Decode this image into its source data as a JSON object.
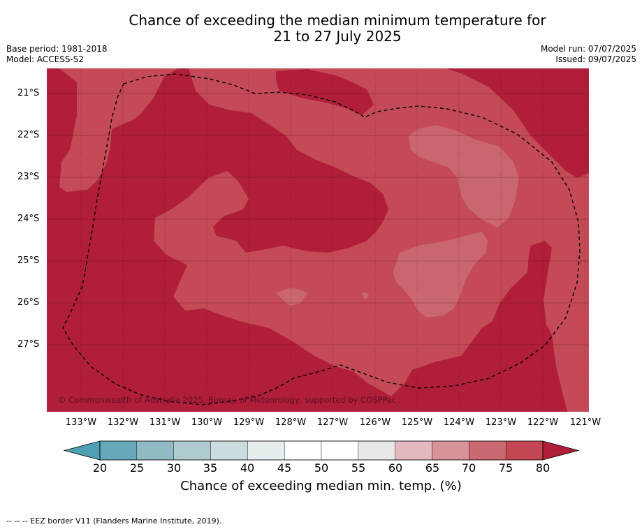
{
  "title": {
    "line1": "Chance of exceeding the median minimum temperature for",
    "line2": "21 to 27 July 2025"
  },
  "info_left": {
    "base_period": "Base period: 1981-2018",
    "model": "Model: ACCESS-S2"
  },
  "info_right": {
    "model_run": "Model run: 07/07/2025",
    "issued": "Issued: 09/07/2025"
  },
  "map": {
    "lat_labels": [
      "21°S",
      "22°S",
      "23°S",
      "24°S",
      "25°S",
      "26°S",
      "27°S"
    ],
    "lon_labels": [
      "133°W",
      "132°W",
      "131°W",
      "130°W",
      "129°W",
      "128°W",
      "127°W",
      "126°W",
      "125°W",
      "124°W",
      "123°W",
      "122°W",
      "121°W"
    ],
    "copyright": "© Commonwealth of Australia 2025, Bureau of Meteorology, supported by COSPPac",
    "colors": {
      "band_80_plus": "#b01e39",
      "band_75_80": "#c34a56",
      "band_70_75": "#c9666e",
      "gridline": "#5a0a18",
      "eez_border": "#000000"
    }
  },
  "colorbar": {
    "ticks": [
      "20",
      "25",
      "30",
      "35",
      "40",
      "45",
      "50",
      "55",
      "60",
      "65",
      "70",
      "75",
      "80"
    ],
    "colors": [
      "#66a9bb",
      "#8fbac6",
      "#aecbd0",
      "#cbdcdf",
      "#e7eef0",
      "#ffffff",
      "#ffffff",
      "#e8e8e8",
      "#e3b9bf",
      "#d89299",
      "#cb6972",
      "#c34653"
    ],
    "under_color": "#4ea0b2",
    "over_color": "#b01e39",
    "label": "Chance of exceeding median min. temp. (%)"
  },
  "footer": "--  --  -- EEZ border V11 (Flanders Marine Institute, 2019)."
}
